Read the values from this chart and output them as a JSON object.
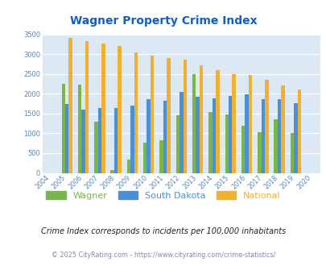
{
  "title": "Wagner Property Crime Index",
  "years": [
    2004,
    2005,
    2006,
    2007,
    2008,
    2009,
    2010,
    2011,
    2012,
    2013,
    2014,
    2015,
    2016,
    2017,
    2018,
    2019,
    2020
  ],
  "wagner": [
    null,
    2250,
    2230,
    1300,
    75,
    330,
    760,
    820,
    1450,
    2500,
    1530,
    1470,
    1200,
    1020,
    1360,
    1010,
    null
  ],
  "south_dakota": [
    null,
    1750,
    1610,
    1640,
    1640,
    1700,
    1860,
    1820,
    2060,
    1920,
    1880,
    1950,
    1990,
    1870,
    1870,
    1760,
    null
  ],
  "national": [
    null,
    3410,
    3340,
    3270,
    3210,
    3040,
    2960,
    2910,
    2860,
    2730,
    2600,
    2490,
    2470,
    2360,
    2210,
    2110,
    null
  ],
  "wagner_color": "#7ab648",
  "sd_color": "#4a90d9",
  "national_color": "#f0b030",
  "bg_color": "#dce9f5",
  "title_color": "#1060c0",
  "ylabel_max": 3500,
  "yticks": [
    0,
    500,
    1000,
    1500,
    2000,
    2500,
    3000,
    3500
  ],
  "subtitle": "Crime Index corresponds to incidents per 100,000 inhabitants",
  "footer": "© 2025 CityRating.com - https://www.cityrating.com/crime-statistics/",
  "legend_labels": [
    "Wagner",
    "South Dakota",
    "National"
  ]
}
